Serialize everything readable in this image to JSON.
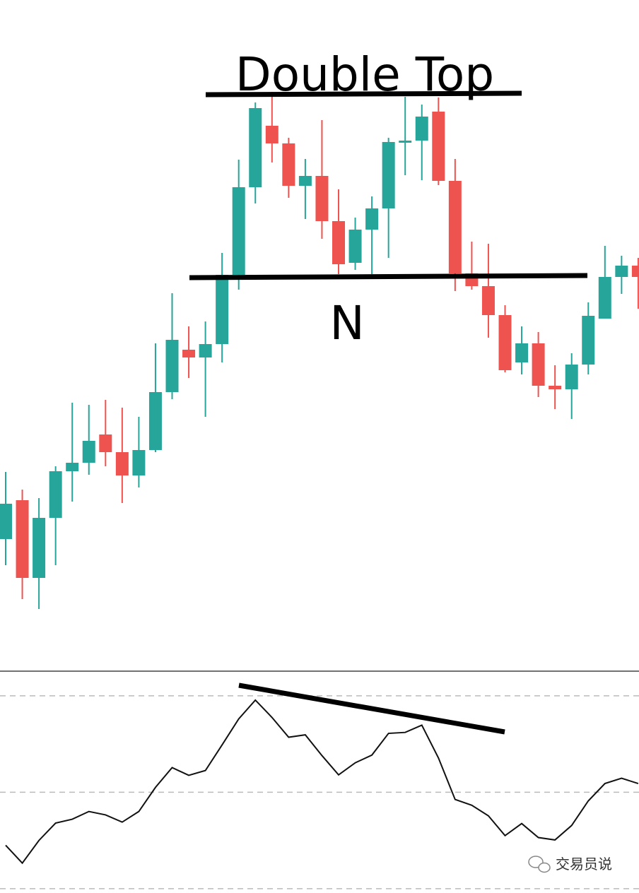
{
  "chart_data": [
    {
      "type": "candlestick",
      "up_color": "#26a69a",
      "down_color": "#ef5350",
      "ylim": [
        0,
        95
      ],
      "open": [
        18.7,
        24.2,
        13.2,
        21.7,
        28.3,
        29.5,
        33.5,
        31.0,
        27.7,
        31.3,
        39.5,
        45.5,
        44.4,
        46.3,
        56.1,
        68.5,
        77.2,
        74.7,
        68.7,
        70.1,
        63.7,
        57.8,
        62.5,
        65.5,
        74.8,
        75.1,
        79.2,
        69.4,
        56.3,
        54.5,
        50.4,
        43.7,
        46.4,
        40.4,
        39.9,
        43.4,
        49.9,
        55.8,
        57.4
      ],
      "high": [
        28.2,
        25.7,
        24.5,
        29.0,
        38.0,
        37.7,
        38.4,
        37.3,
        36.0,
        46.4,
        53.5,
        48.8,
        49.5,
        59.2,
        72.4,
        80.5,
        82.0,
        75.5,
        72.5,
        78.0,
        68.2,
        64.2,
        67.2,
        75.5,
        81.3,
        80.2,
        81.2,
        72.5,
        60.8,
        60.5,
        51.8,
        48.8,
        48.0,
        43.3,
        45.0,
        52.2,
        60.2,
        58.8,
        58.5
      ],
      "low": [
        15.0,
        10.2,
        8.8,
        15.0,
        24.0,
        27.8,
        29.0,
        23.8,
        26.0,
        31.0,
        38.5,
        41.5,
        36.0,
        43.7,
        54.0,
        66.2,
        72.0,
        67.0,
        64.0,
        61.2,
        56.2,
        56.8,
        56.2,
        58.5,
        70.2,
        69.5,
        68.8,
        53.8,
        54.0,
        47.2,
        42.3,
        42.0,
        38.8,
        37.1,
        35.7,
        42.0,
        49.9,
        53.4,
        51.3
      ],
      "close": [
        23.7,
        13.2,
        21.7,
        28.3,
        29.5,
        32.6,
        31.0,
        27.7,
        31.3,
        39.5,
        46.9,
        44.4,
        46.3,
        56.1,
        68.5,
        79.7,
        74.7,
        68.7,
        70.1,
        63.7,
        57.6,
        62.5,
        65.5,
        74.9,
        75.1,
        78.5,
        69.4,
        56.3,
        54.5,
        50.4,
        42.6,
        46.4,
        40.4,
        39.9,
        43.4,
        50.3,
        55.8,
        57.4,
        55.8
      ],
      "annotations": [
        "Double Top",
        "N"
      ]
    },
    {
      "type": "line",
      "color": "#111111",
      "ylim": [
        29.1,
        75.1
      ],
      "levels": [
        30,
        50,
        70
      ],
      "values": [
        39.0,
        35.3,
        40.0,
        43.6,
        44.4,
        46.0,
        45.3,
        43.8,
        46.0,
        51.0,
        55.1,
        53.5,
        54.5,
        59.8,
        65.2,
        69.1,
        65.5,
        61.4,
        61.9,
        57.6,
        53.6,
        56.1,
        57.7,
        62.2,
        62.4,
        63.9,
        57.1,
        48.5,
        47.3,
        45.1,
        41.0,
        43.5,
        40.6,
        40.1,
        43.1,
        48.2,
        51.8,
        52.9,
        51.8
      ]
    }
  ],
  "watermark": "交易员说"
}
